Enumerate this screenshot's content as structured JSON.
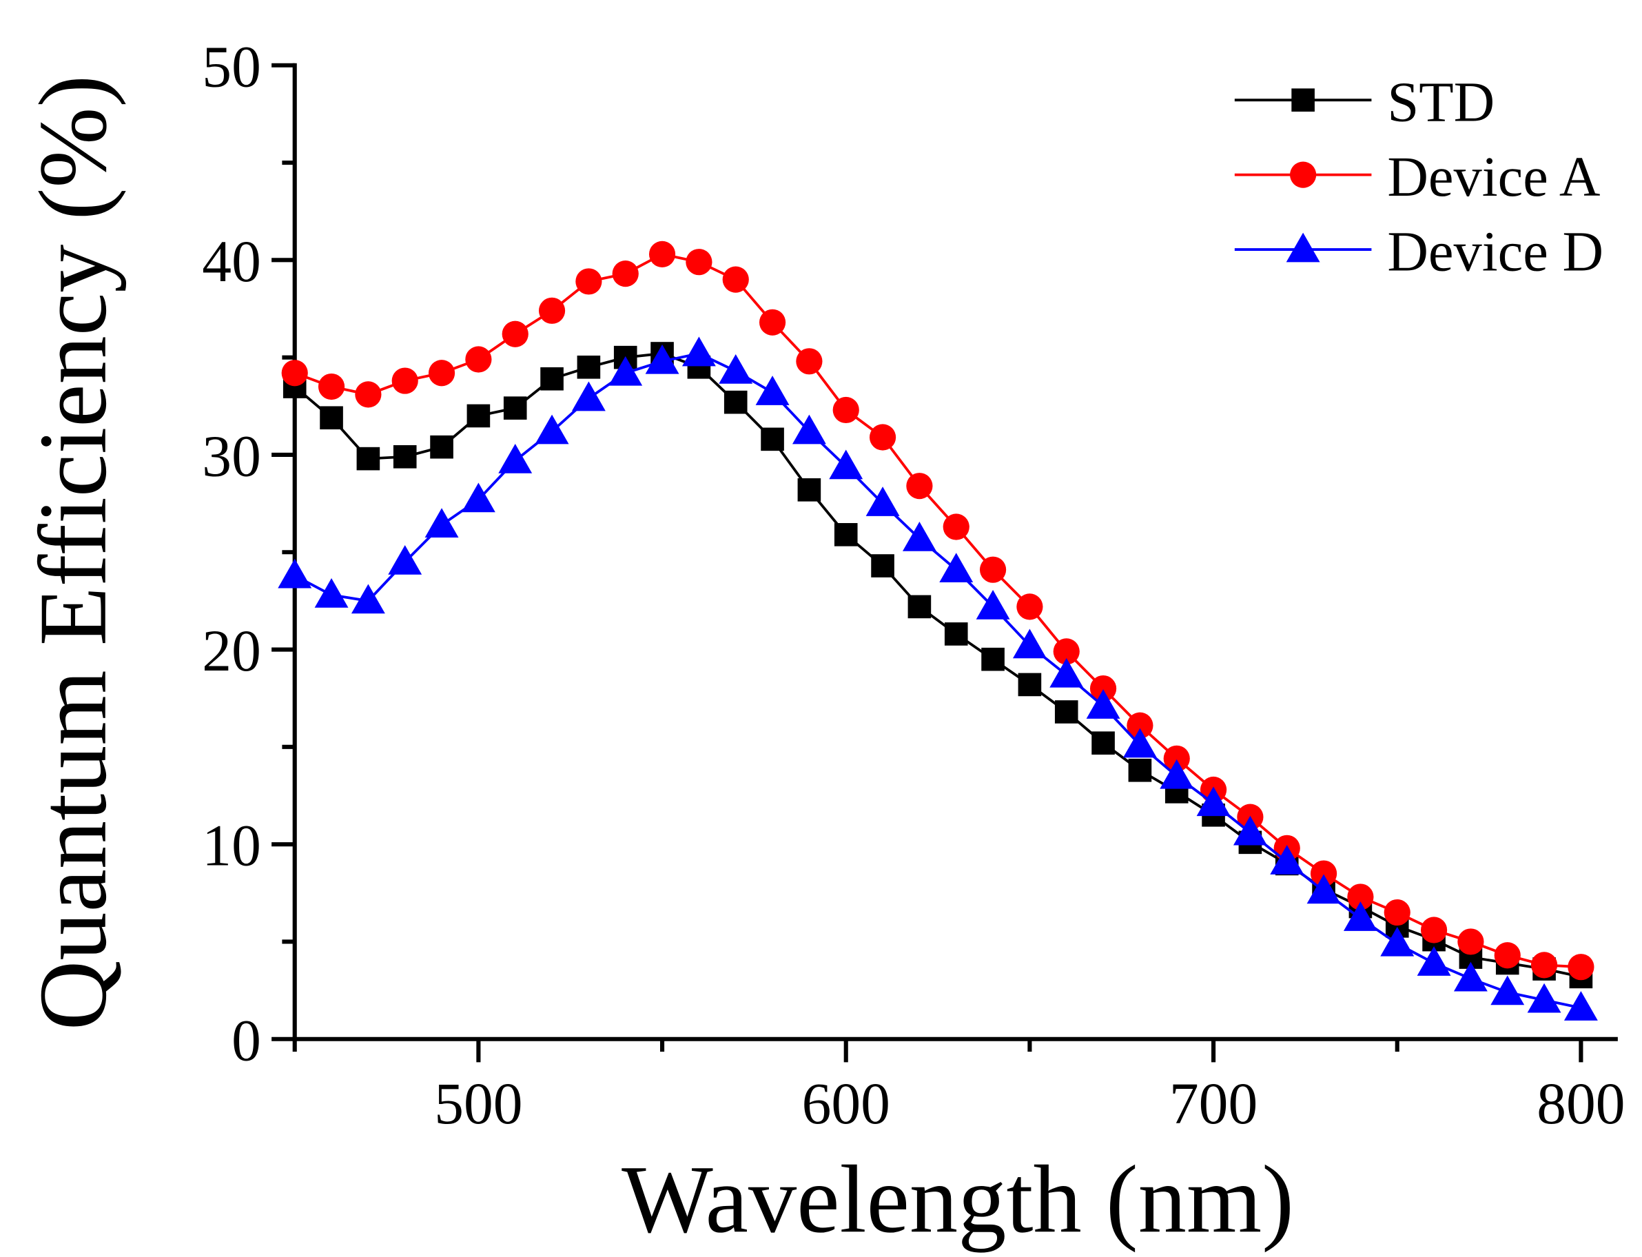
{
  "chart_data": {
    "type": "line",
    "xlabel": "Wavelength (nm)",
    "ylabel": "Quantum Efficiency (%)",
    "xlim": [
      450,
      810
    ],
    "ylim": [
      0,
      50
    ],
    "xticks": [
      500,
      600,
      700,
      800
    ],
    "yticks": [
      0,
      10,
      20,
      30,
      40,
      50
    ],
    "grid": false,
    "legend_position": "top-right",
    "x": [
      450,
      460,
      470,
      480,
      490,
      500,
      510,
      520,
      530,
      540,
      550,
      560,
      570,
      580,
      590,
      600,
      610,
      620,
      630,
      640,
      650,
      660,
      670,
      680,
      690,
      700,
      710,
      720,
      730,
      740,
      750,
      760,
      770,
      780,
      790,
      800
    ],
    "series": [
      {
        "name": "STD",
        "color": "#000000",
        "marker": "square",
        "values": [
          33.5,
          31.9,
          29.8,
          29.9,
          30.4,
          32.0,
          32.4,
          33.9,
          34.5,
          35.0,
          35.2,
          34.5,
          32.7,
          30.8,
          28.2,
          25.9,
          24.3,
          22.2,
          20.8,
          19.5,
          18.2,
          16.8,
          15.2,
          13.8,
          12.7,
          11.5,
          10.1,
          9.0,
          7.7,
          6.8,
          5.8,
          5.1,
          4.2,
          3.9,
          3.6,
          3.2
        ]
      },
      {
        "name": "Device A",
        "color": "#ff0000",
        "marker": "circle",
        "values": [
          34.2,
          33.5,
          33.1,
          33.8,
          34.2,
          34.9,
          36.2,
          37.4,
          38.9,
          39.3,
          40.3,
          39.9,
          39.0,
          36.8,
          34.8,
          32.3,
          30.9,
          28.4,
          26.3,
          24.1,
          22.2,
          19.9,
          18.0,
          16.1,
          14.4,
          12.8,
          11.4,
          9.8,
          8.5,
          7.3,
          6.5,
          5.6,
          5.0,
          4.3,
          3.8,
          3.7
        ]
      },
      {
        "name": "Device D",
        "color": "#0000ff",
        "marker": "triangle",
        "values": [
          23.8,
          22.8,
          22.5,
          24.5,
          26.4,
          27.7,
          29.7,
          31.2,
          32.9,
          34.2,
          34.8,
          35.2,
          34.3,
          33.2,
          31.2,
          29.4,
          27.5,
          25.7,
          24.1,
          22.2,
          20.2,
          18.7,
          17.1,
          15.1,
          13.5,
          12.1,
          10.6,
          9.1,
          7.6,
          6.2,
          4.9,
          3.9,
          3.1,
          2.4,
          2.0,
          1.6
        ]
      }
    ]
  }
}
